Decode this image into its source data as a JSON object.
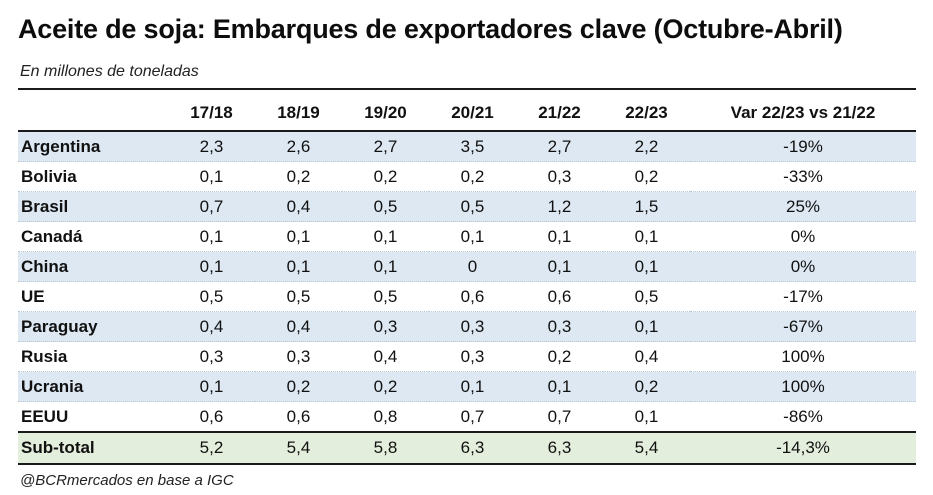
{
  "title": "Aceite de soja: Embarques de exportadores clave (Octubre-Abril)",
  "subtitle": "En millones de toneladas",
  "columns": [
    "",
    "17/18",
    "18/19",
    "19/20",
    "20/21",
    "21/22",
    "22/23",
    "Var 22/23 vs 21/22"
  ],
  "rows": [
    {
      "country": "Argentina",
      "values": [
        "2,3",
        "2,6",
        "2,7",
        "3,5",
        "2,7",
        "2,2"
      ],
      "var": "-19%"
    },
    {
      "country": "Bolivia",
      "values": [
        "0,1",
        "0,2",
        "0,2",
        "0,2",
        "0,3",
        "0,2"
      ],
      "var": "-33%"
    },
    {
      "country": "Brasil",
      "values": [
        "0,7",
        "0,4",
        "0,5",
        "0,5",
        "1,2",
        "1,5"
      ],
      "var": "25%"
    },
    {
      "country": "Canadá",
      "values": [
        "0,1",
        "0,1",
        "0,1",
        "0,1",
        "0,1",
        "0,1"
      ],
      "var": "0%"
    },
    {
      "country": "China",
      "values": [
        "0,1",
        "0,1",
        "0,1",
        "0",
        "0,1",
        "0,1"
      ],
      "var": "0%"
    },
    {
      "country": "UE",
      "values": [
        "0,5",
        "0,5",
        "0,5",
        "0,6",
        "0,6",
        "0,5"
      ],
      "var": "-17%"
    },
    {
      "country": "Paraguay",
      "values": [
        "0,4",
        "0,4",
        "0,3",
        "0,3",
        "0,3",
        "0,1"
      ],
      "var": "-67%"
    },
    {
      "country": "Rusia",
      "values": [
        "0,3",
        "0,3",
        "0,4",
        "0,3",
        "0,2",
        "0,4"
      ],
      "var": "100%"
    },
    {
      "country": "Ucrania",
      "values": [
        "0,1",
        "0,2",
        "0,2",
        "0,1",
        "0,1",
        "0,2"
      ],
      "var": "100%"
    },
    {
      "country": "EEUU",
      "values": [
        "0,6",
        "0,6",
        "0,8",
        "0,7",
        "0,7",
        "0,1"
      ],
      "var": "-86%"
    }
  ],
  "subtotal": {
    "label": "Sub-total",
    "values": [
      "5,2",
      "5,4",
      "5,8",
      "6,3",
      "6,3",
      "5,4"
    ],
    "var": "-14,3%"
  },
  "footer": "@BCRmercados en base a IGC",
  "colors": {
    "band": "#dde8f3",
    "subtotal": "#e4eedc"
  }
}
